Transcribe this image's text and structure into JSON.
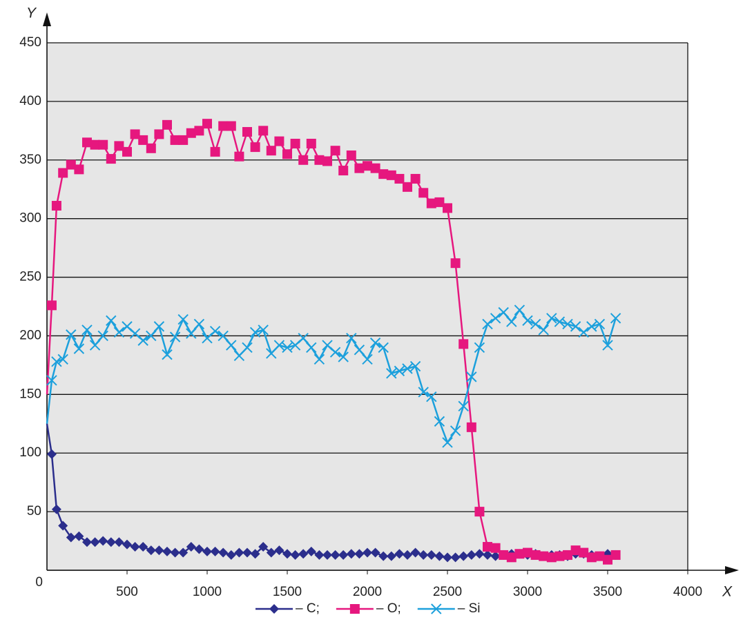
{
  "chart_data": {
    "type": "line",
    "x_label": "X",
    "y_label": "Y",
    "x": [
      0,
      30,
      60,
      100,
      150,
      200,
      250,
      300,
      350,
      400,
      450,
      500,
      550,
      600,
      650,
      700,
      750,
      800,
      850,
      900,
      950,
      1000,
      1050,
      1100,
      1150,
      1200,
      1250,
      1300,
      1350,
      1400,
      1450,
      1500,
      1550,
      1600,
      1650,
      1700,
      1750,
      1800,
      1850,
      1900,
      1950,
      2000,
      2050,
      2100,
      2150,
      2200,
      2250,
      2300,
      2350,
      2400,
      2450,
      2500,
      2550,
      2600,
      2650,
      2700,
      2750,
      2800,
      2850,
      2900,
      2950,
      3000,
      3050,
      3100,
      3150,
      3200,
      3250,
      3300,
      3350,
      3400,
      3450,
      3500,
      3550
    ],
    "series": [
      {
        "name": "– C;",
        "color": "#2b2e8c",
        "marker": "diamond",
        "values": [
          125,
          99,
          52,
          38,
          28,
          29,
          24,
          24,
          25,
          24,
          24,
          22,
          20,
          20,
          17,
          17,
          16,
          15,
          15,
          20,
          18,
          16,
          16,
          15,
          13,
          15,
          15,
          14,
          20,
          15,
          17,
          14,
          13,
          14,
          16,
          13,
          13,
          13,
          13,
          14,
          14,
          15,
          15,
          12,
          12,
          14,
          13,
          15,
          13,
          13,
          12,
          11,
          11,
          12,
          13,
          14,
          13,
          12,
          13,
          14,
          14,
          13,
          14,
          12,
          13,
          13,
          12,
          14,
          14,
          13,
          12,
          14,
          13
        ]
      },
      {
        "name": "– O;",
        "color": "#e6177e",
        "marker": "square",
        "values": [
          150,
          226,
          311,
          339,
          346,
          342,
          365,
          363,
          363,
          351,
          362,
          357,
          372,
          367,
          360,
          372,
          380,
          367,
          367,
          373,
          375,
          381,
          357,
          379,
          379,
          353,
          374,
          361,
          375,
          358,
          366,
          355,
          364,
          350,
          364,
          350,
          349,
          358,
          341,
          354,
          343,
          345,
          343,
          338,
          337,
          334,
          327,
          334,
          322,
          313,
          314,
          309,
          262,
          193,
          122,
          50,
          20,
          19,
          13,
          11,
          14,
          15,
          13,
          12,
          11,
          12,
          13,
          17,
          15,
          11,
          12,
          9,
          13
        ]
      },
      {
        "name": "– Si",
        "color": "#1ca0dc",
        "marker": "x",
        "values": [
          125,
          162,
          178,
          180,
          201,
          189,
          205,
          192,
          200,
          213,
          203,
          208,
          202,
          196,
          200,
          208,
          184,
          199,
          214,
          202,
          210,
          198,
          204,
          200,
          192,
          183,
          190,
          203,
          205,
          185,
          192,
          190,
          192,
          198,
          190,
          180,
          192,
          186,
          182,
          198,
          188,
          180,
          194,
          190,
          168,
          170,
          172,
          174,
          152,
          148,
          127,
          109,
          119,
          140,
          165,
          190,
          210,
          215,
          220,
          212,
          222,
          213,
          210,
          205,
          215,
          212,
          210,
          208,
          203,
          208,
          210,
          192,
          215
        ]
      }
    ],
    "xlim": [
      0,
      4000
    ],
    "xticks": [
      500,
      1000,
      1500,
      2000,
      2500,
      3000,
      3500,
      4000
    ],
    "ylim": [
      0,
      450
    ],
    "yticks": [
      0,
      50,
      100,
      150,
      200,
      250,
      300,
      350,
      400,
      450
    ],
    "grid": true,
    "legend": "bottom"
  }
}
